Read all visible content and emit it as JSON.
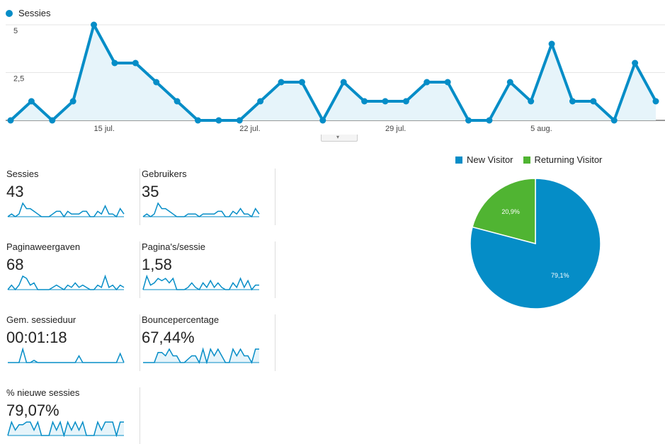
{
  "colors": {
    "primary": "#058dc7",
    "secondary": "#50b432",
    "area": "#e6f4fa",
    "grid": "#e5e5e5"
  },
  "legend": {
    "label": "Sessies"
  },
  "chart_data": [
    {
      "type": "line",
      "series": [
        {
          "name": "Sessies",
          "values": [
            0,
            1,
            0,
            1,
            5,
            3,
            3,
            2,
            1,
            0,
            0,
            0,
            1,
            2,
            2,
            0,
            2,
            1,
            1,
            1,
            2,
            2,
            0,
            0,
            2,
            1,
            4,
            1,
            1,
            0,
            3,
            1
          ]
        }
      ],
      "y_ticks": [
        "5",
        "2,5"
      ],
      "ylim": [
        0,
        5
      ],
      "x_ticks": [
        {
          "index": 4.5,
          "label": "15 jul."
        },
        {
          "index": 11.5,
          "label": "22 jul."
        },
        {
          "index": 18.5,
          "label": "29 jul."
        },
        {
          "index": 25.5,
          "label": "5 aug."
        }
      ],
      "grid": true
    },
    {
      "type": "pie",
      "legend_position": "top",
      "slices": [
        {
          "name": "New Visitor",
          "value": 79.1,
          "label": "79,1%"
        },
        {
          "name": "Returning Visitor",
          "value": 20.9,
          "label": "20,9%"
        }
      ]
    }
  ],
  "metrics": [
    {
      "label": "Sessies",
      "value": "43",
      "spark": [
        0,
        1,
        0,
        1,
        5,
        3,
        3,
        2,
        1,
        0,
        0,
        0,
        1,
        2,
        2,
        0,
        2,
        1,
        1,
        1,
        2,
        2,
        0,
        0,
        2,
        1,
        4,
        1,
        1,
        0,
        3,
        1
      ],
      "fill": false
    },
    {
      "label": "Gebruikers",
      "value": "35",
      "spark": [
        0,
        1,
        0,
        1,
        5,
        3,
        3,
        2,
        1,
        0,
        0,
        0,
        1,
        1,
        1,
        0,
        1,
        1,
        1,
        1,
        2,
        2,
        0,
        0,
        2,
        1,
        3,
        1,
        1,
        0,
        3,
        1
      ],
      "fill": false
    },
    {
      "label": "Paginaweergaven",
      "value": "68",
      "spark": [
        0,
        2,
        0,
        2,
        6,
        5,
        2,
        3,
        0,
        0,
        0,
        0,
        1,
        2,
        1,
        0,
        2,
        1,
        3,
        1,
        2,
        1,
        0,
        0,
        2,
        1,
        6,
        1,
        2,
        0,
        2,
        1
      ],
      "fill": false
    },
    {
      "label": "Pagina's/sessie",
      "value": "1,58",
      "spark": [
        0,
        6,
        2,
        3,
        5,
        4,
        5,
        3,
        5,
        0,
        0,
        0,
        1,
        3,
        1,
        0,
        3,
        1,
        4,
        1,
        3,
        1,
        0,
        0,
        3,
        1,
        5,
        1,
        4,
        0,
        2,
        2
      ],
      "fill": false
    },
    {
      "label": "Gem. sessieduur",
      "value": "00:01:18",
      "spark": [
        0,
        0,
        0,
        0,
        6,
        0,
        0,
        1,
        0,
        0,
        0,
        0,
        0,
        0,
        0,
        0,
        0,
        0,
        0,
        3,
        0,
        0,
        0,
        0,
        0,
        0,
        0,
        0,
        0,
        0,
        4,
        0
      ],
      "fill": false
    },
    {
      "label": "Bouncepercentage",
      "value": "67,44%",
      "spark": [
        0,
        0,
        0,
        0,
        3,
        3,
        2,
        4,
        2,
        2,
        0,
        0,
        1,
        2,
        2,
        0,
        4,
        0,
        4,
        2,
        4,
        2,
        0,
        0,
        4,
        2,
        4,
        2,
        2,
        0,
        4,
        4
      ],
      "fill": true
    },
    {
      "label": "% nieuwe sessies",
      "value": "79,07%",
      "spark": [
        0,
        5,
        2,
        4,
        4,
        5,
        5,
        2,
        5,
        0,
        0,
        0,
        5,
        2,
        5,
        0,
        5,
        2,
        5,
        2,
        5,
        0,
        0,
        0,
        5,
        2,
        5,
        5,
        5,
        0,
        5,
        5
      ],
      "fill": true
    }
  ]
}
